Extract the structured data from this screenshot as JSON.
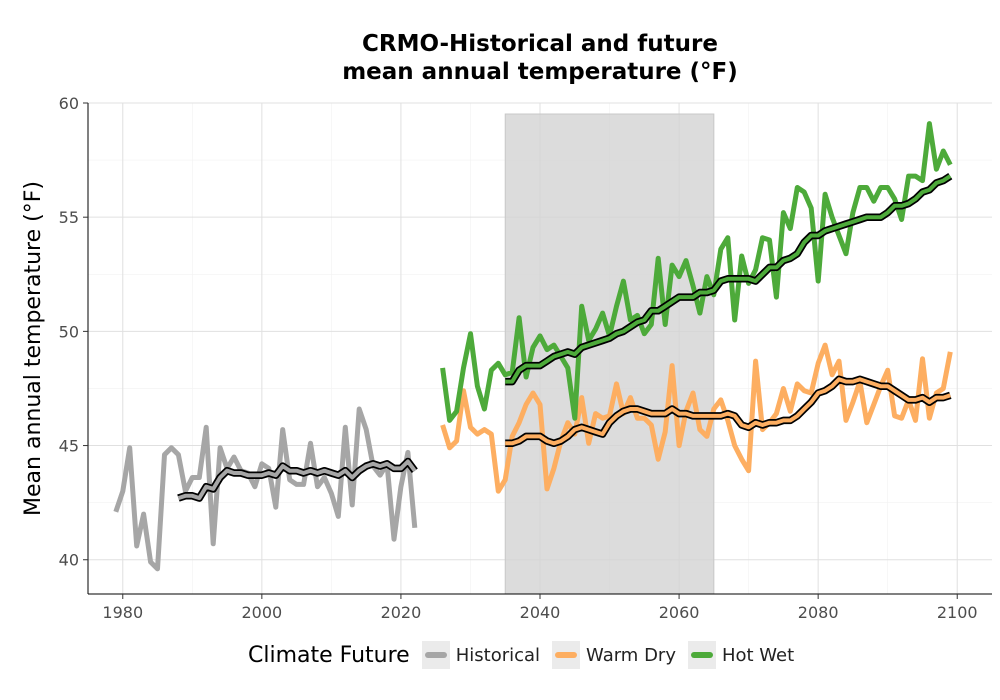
{
  "chart_data": {
    "type": "line",
    "title_line1": "CRMO-Historical and future",
    "title_line2": "mean annual temperature (°F)",
    "xlabel": "",
    "ylabel": "Mean annual temperature (°F)",
    "xlim": [
      1975,
      2105
    ],
    "ylim": [
      38.5,
      60
    ],
    "x_ticks": [
      1980,
      2000,
      2020,
      2040,
      2060,
      2080,
      2100
    ],
    "y_ticks": [
      40,
      45,
      50,
      55,
      60
    ],
    "grid": true,
    "shaded_period": [
      2035,
      2065
    ],
    "legend": {
      "title": "Climate Future",
      "position": "bottom"
    },
    "series": [
      {
        "name": "Historical",
        "color": "#a6a6a6",
        "x": [
          1979,
          1980,
          1981,
          1982,
          1983,
          1984,
          1985,
          1986,
          1987,
          1988,
          1989,
          1990,
          1991,
          1992,
          1993,
          1994,
          1995,
          1996,
          1997,
          1998,
          1999,
          2000,
          2001,
          2002,
          2003,
          2004,
          2005,
          2006,
          2007,
          2008,
          2009,
          2010,
          2011,
          2012,
          2013,
          2014,
          2015,
          2016,
          2017,
          2018,
          2019,
          2020,
          2021,
          2022
        ],
        "y": [
          42.1,
          43.0,
          44.9,
          40.6,
          42.0,
          39.9,
          39.6,
          44.6,
          44.9,
          44.6,
          43.0,
          43.6,
          43.6,
          45.8,
          40.7,
          44.9,
          44.0,
          44.5,
          43.9,
          43.8,
          43.2,
          44.2,
          44.0,
          42.3,
          45.7,
          43.5,
          43.3,
          43.3,
          45.1,
          43.2,
          43.6,
          42.9,
          41.9,
          45.8,
          42.4,
          46.6,
          45.7,
          44.1,
          43.7,
          44.2,
          40.9,
          43.2,
          44.7,
          41.4
        ]
      },
      {
        "name": "Historical-smoothed",
        "color": "#a6a6a6",
        "smoothed": true,
        "x": [
          1988,
          1989,
          1990,
          1991,
          1992,
          1993,
          1994,
          1995,
          1996,
          1997,
          1998,
          1999,
          2000,
          2001,
          2002,
          2003,
          2004,
          2005,
          2006,
          2007,
          2008,
          2009,
          2010,
          2011,
          2012,
          2013,
          2014,
          2015,
          2016,
          2017,
          2018,
          2019,
          2020,
          2021,
          2022
        ],
        "y": [
          42.7,
          42.8,
          42.8,
          42.7,
          43.2,
          43.1,
          43.6,
          43.9,
          43.8,
          43.8,
          43.7,
          43.7,
          43.7,
          43.8,
          43.7,
          44.1,
          43.9,
          43.9,
          43.8,
          43.9,
          43.8,
          43.9,
          43.8,
          43.7,
          43.9,
          43.6,
          43.9,
          44.1,
          44.2,
          44.1,
          44.2,
          44.0,
          44.0,
          44.3,
          43.9
        ]
      },
      {
        "name": "Warm Dry",
        "color": "#fdae61",
        "x": [
          2026,
          2027,
          2028,
          2029,
          2030,
          2031,
          2032,
          2033,
          2034,
          2035,
          2036,
          2037,
          2038,
          2039,
          2040,
          2041,
          2042,
          2043,
          2044,
          2045,
          2046,
          2047,
          2048,
          2049,
          2050,
          2051,
          2052,
          2053,
          2054,
          2055,
          2056,
          2057,
          2058,
          2059,
          2060,
          2061,
          2062,
          2063,
          2064,
          2065,
          2066,
          2067,
          2068,
          2069,
          2070,
          2071,
          2072,
          2073,
          2074,
          2075,
          2076,
          2077,
          2078,
          2079,
          2080,
          2081,
          2082,
          2083,
          2084,
          2085,
          2086,
          2087,
          2088,
          2089,
          2090,
          2091,
          2092,
          2093,
          2094,
          2095,
          2096,
          2097,
          2098,
          2099
        ],
        "y": [
          45.9,
          44.9,
          45.2,
          47.4,
          45.8,
          45.5,
          45.7,
          45.5,
          43.0,
          43.5,
          45.4,
          46.0,
          46.8,
          47.3,
          46.8,
          43.1,
          44.0,
          45.2,
          46.0,
          45.5,
          47.1,
          45.1,
          46.4,
          46.2,
          46.3,
          47.7,
          46.4,
          47.1,
          46.2,
          46.2,
          45.9,
          44.4,
          45.6,
          48.5,
          45.0,
          46.5,
          47.3,
          45.7,
          45.4,
          46.6,
          47.0,
          46.1,
          45.0,
          44.4,
          43.9,
          48.7,
          45.7,
          46.0,
          46.4,
          47.5,
          46.5,
          47.7,
          47.4,
          47.3,
          48.6,
          49.4,
          48.1,
          48.7,
          46.1,
          46.9,
          47.8,
          46.0,
          46.8,
          47.6,
          48.3,
          46.3,
          46.2,
          47.0,
          46.1,
          48.8,
          46.2,
          47.3,
          47.5,
          49.1
        ]
      },
      {
        "name": "Warm Dry-smoothed",
        "color": "#fdae61",
        "smoothed": true,
        "x": [
          2035,
          2036,
          2037,
          2038,
          2039,
          2040,
          2041,
          2042,
          2043,
          2044,
          2045,
          2046,
          2047,
          2048,
          2049,
          2050,
          2051,
          2052,
          2053,
          2054,
          2055,
          2056,
          2057,
          2058,
          2059,
          2060,
          2061,
          2062,
          2063,
          2064,
          2065,
          2066,
          2067,
          2068,
          2069,
          2070,
          2071,
          2072,
          2073,
          2074,
          2075,
          2076,
          2077,
          2078,
          2079,
          2080,
          2081,
          2082,
          2083,
          2084,
          2085,
          2086,
          2087,
          2088,
          2089,
          2090,
          2091,
          2092,
          2093,
          2094,
          2095,
          2096,
          2097,
          2098,
          2099
        ],
        "y": [
          45.1,
          45.1,
          45.2,
          45.4,
          45.4,
          45.4,
          45.2,
          45.1,
          45.2,
          45.4,
          45.7,
          45.8,
          45.7,
          45.6,
          45.5,
          46.0,
          46.3,
          46.5,
          46.6,
          46.6,
          46.5,
          46.4,
          46.4,
          46.4,
          46.6,
          46.4,
          46.4,
          46.3,
          46.3,
          46.3,
          46.3,
          46.3,
          46.4,
          46.3,
          45.9,
          45.8,
          46.0,
          45.9,
          46.0,
          46.0,
          46.1,
          46.1,
          46.3,
          46.6,
          46.9,
          47.3,
          47.4,
          47.6,
          47.9,
          47.8,
          47.8,
          47.9,
          47.8,
          47.7,
          47.6,
          47.6,
          47.4,
          47.2,
          47.0,
          47.0,
          47.1,
          46.9,
          47.1,
          47.1,
          47.2
        ]
      },
      {
        "name": "Hot Wet",
        "color": "#4daa3a",
        "x": [
          2026,
          2027,
          2028,
          2029,
          2030,
          2031,
          2032,
          2033,
          2034,
          2035,
          2036,
          2037,
          2038,
          2039,
          2040,
          2041,
          2042,
          2043,
          2044,
          2045,
          2046,
          2047,
          2048,
          2049,
          2050,
          2051,
          2052,
          2053,
          2054,
          2055,
          2056,
          2057,
          2058,
          2059,
          2060,
          2061,
          2062,
          2063,
          2064,
          2065,
          2066,
          2067,
          2068,
          2069,
          2070,
          2071,
          2072,
          2073,
          2074,
          2075,
          2076,
          2077,
          2078,
          2079,
          2080,
          2081,
          2082,
          2083,
          2084,
          2085,
          2086,
          2087,
          2088,
          2089,
          2090,
          2091,
          2092,
          2093,
          2094,
          2095,
          2096,
          2097,
          2098,
          2099
        ],
        "y": [
          48.4,
          46.1,
          46.5,
          48.4,
          49.9,
          47.6,
          46.6,
          48.3,
          48.6,
          48.1,
          48.2,
          50.6,
          48.0,
          49.3,
          49.8,
          49.2,
          49.4,
          48.9,
          48.4,
          46.2,
          51.1,
          49.6,
          50.1,
          50.8,
          49.8,
          51.1,
          52.2,
          50.5,
          50.7,
          49.9,
          50.3,
          53.2,
          50.3,
          52.9,
          52.4,
          53.1,
          52.0,
          50.8,
          52.4,
          51.6,
          53.6,
          54.1,
          50.5,
          53.3,
          52.1,
          52.7,
          54.1,
          54.0,
          51.5,
          55.2,
          54.5,
          56.3,
          56.1,
          55.4,
          52.2,
          56.0,
          55.0,
          54.2,
          53.4,
          55.2,
          56.3,
          56.3,
          55.7,
          56.3,
          56.3,
          55.8,
          54.9,
          56.8,
          56.8,
          56.6,
          59.1,
          57.1,
          57.9,
          57.3
        ]
      },
      {
        "name": "Hot Wet-smoothed",
        "color": "#4daa3a",
        "smoothed": true,
        "x": [
          2035,
          2036,
          2037,
          2038,
          2039,
          2040,
          2041,
          2042,
          2043,
          2044,
          2045,
          2046,
          2047,
          2048,
          2049,
          2050,
          2051,
          2052,
          2053,
          2054,
          2055,
          2056,
          2057,
          2058,
          2059,
          2060,
          2061,
          2062,
          2063,
          2064,
          2065,
          2066,
          2067,
          2068,
          2069,
          2070,
          2071,
          2072,
          2073,
          2074,
          2075,
          2076,
          2077,
          2078,
          2079,
          2080,
          2081,
          2082,
          2083,
          2084,
          2085,
          2086,
          2087,
          2088,
          2089,
          2090,
          2091,
          2092,
          2093,
          2094,
          2095,
          2096,
          2097,
          2098,
          2099
        ],
        "y": [
          47.8,
          47.8,
          48.3,
          48.5,
          48.5,
          48.5,
          48.7,
          48.9,
          49.0,
          49.1,
          49.0,
          49.3,
          49.4,
          49.5,
          49.6,
          49.7,
          49.9,
          50.0,
          50.2,
          50.4,
          50.5,
          50.9,
          50.9,
          51.1,
          51.3,
          51.5,
          51.5,
          51.5,
          51.7,
          51.7,
          51.8,
          52.2,
          52.3,
          52.3,
          52.3,
          52.3,
          52.2,
          52.5,
          52.8,
          52.8,
          53.1,
          53.2,
          53.4,
          53.9,
          54.2,
          54.2,
          54.4,
          54.5,
          54.6,
          54.7,
          54.8,
          54.9,
          55.0,
          55.0,
          55.0,
          55.2,
          55.5,
          55.5,
          55.6,
          55.8,
          56.1,
          56.2,
          56.5,
          56.6,
          56.8
        ]
      }
    ]
  }
}
